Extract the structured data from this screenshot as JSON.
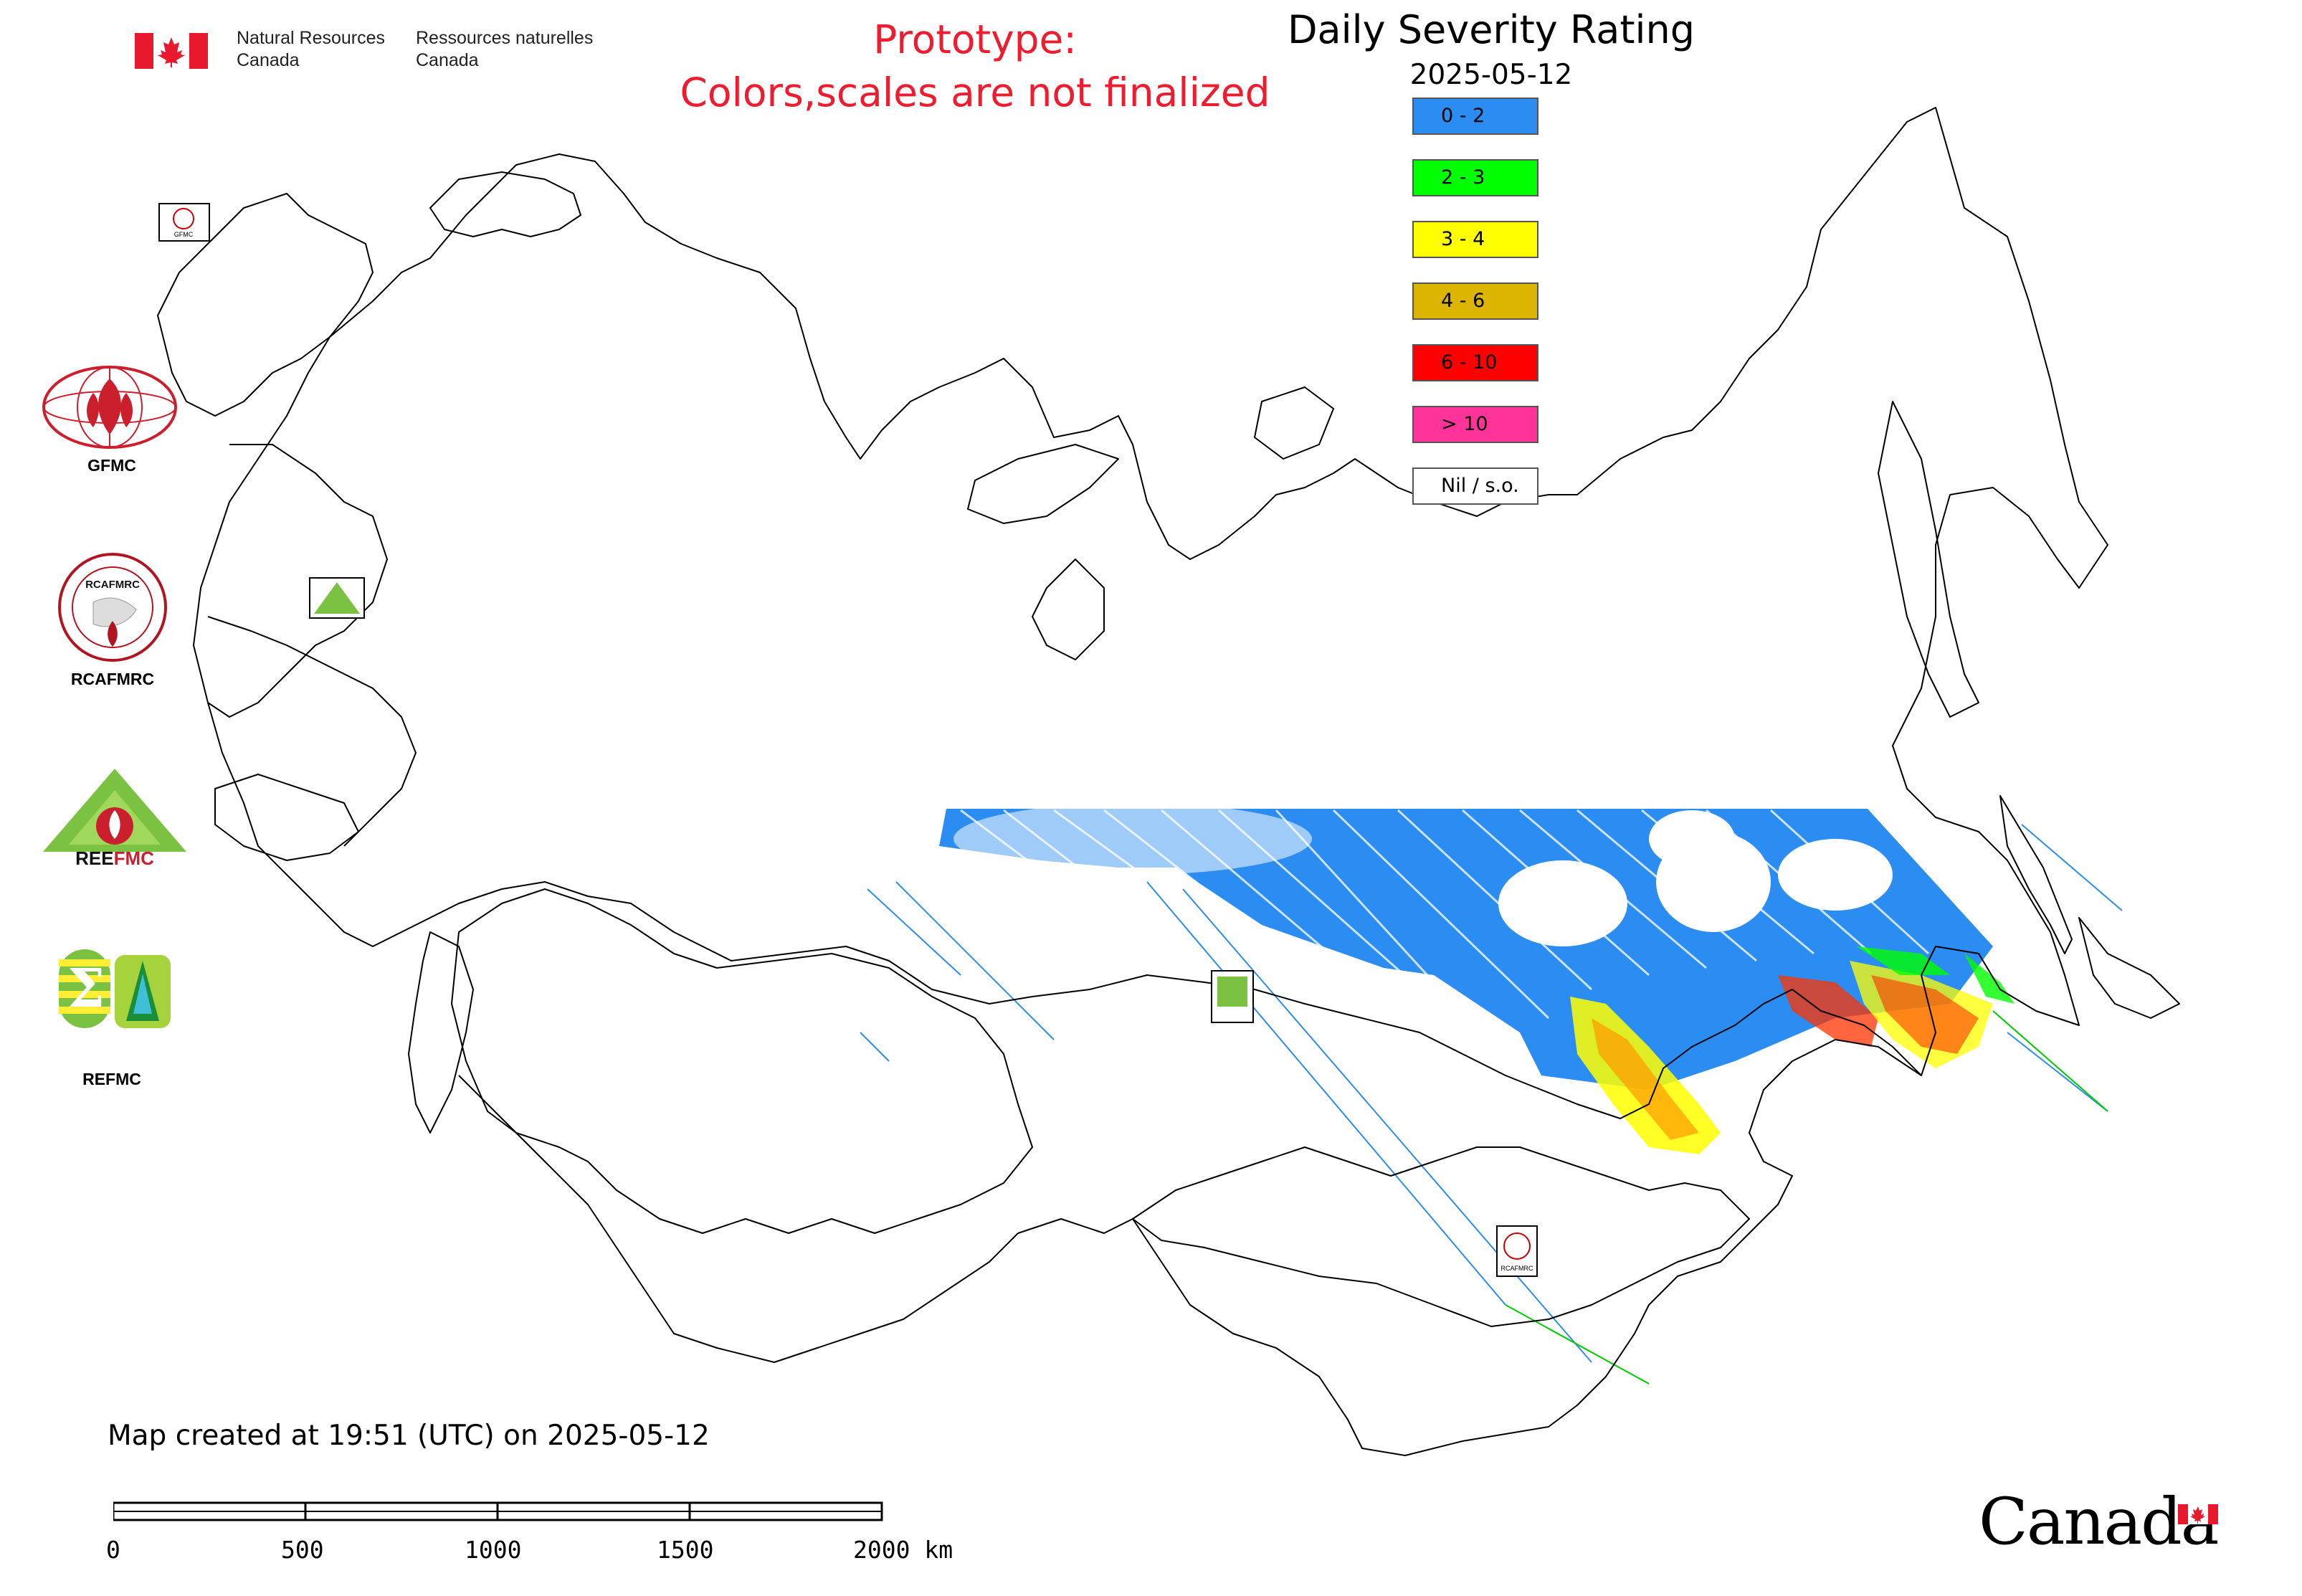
{
  "header": {
    "department_en": "Natural Resources\nCanada",
    "department_fr": "Ressources naturelles\nCanada",
    "prototype_notice": "Prototype:\nColors,scales are not finalized"
  },
  "map": {
    "title": "Daily Severity Rating",
    "date": "2025-05-12",
    "ocean_color": "#ffffff",
    "boundary_color": "#000000",
    "background_color": "#ffffff"
  },
  "legend": {
    "items": [
      {
        "label": "0 - 2",
        "color": "#2b8cf2"
      },
      {
        "label": "2 - 3",
        "color": "#00ff00"
      },
      {
        "label": "3 - 4",
        "color": "#ffff00"
      },
      {
        "label": "4 - 6",
        "color": "#dbb500"
      },
      {
        "label": "6 - 10",
        "color": "#ff0000"
      },
      {
        "label": "> 10",
        "color": "#ff3399"
      },
      {
        "label": "Nil / s.o.",
        "color": "#ffffff"
      }
    ]
  },
  "logos": {
    "gfmc": "GFMC",
    "rcafmrc": "RCAFMRC",
    "reefmc": "REEFMC",
    "refmc": "REFMC",
    "small_gfmc": "GFMC",
    "small_rcafmrc": "RCAFMRC"
  },
  "footer": {
    "created_note": "Map created at 19:51 (UTC) on 2025-05-12",
    "scale_labels": [
      "0",
      "500",
      "1000",
      "1500",
      "2000 km"
    ],
    "wordmark": "Canada"
  }
}
